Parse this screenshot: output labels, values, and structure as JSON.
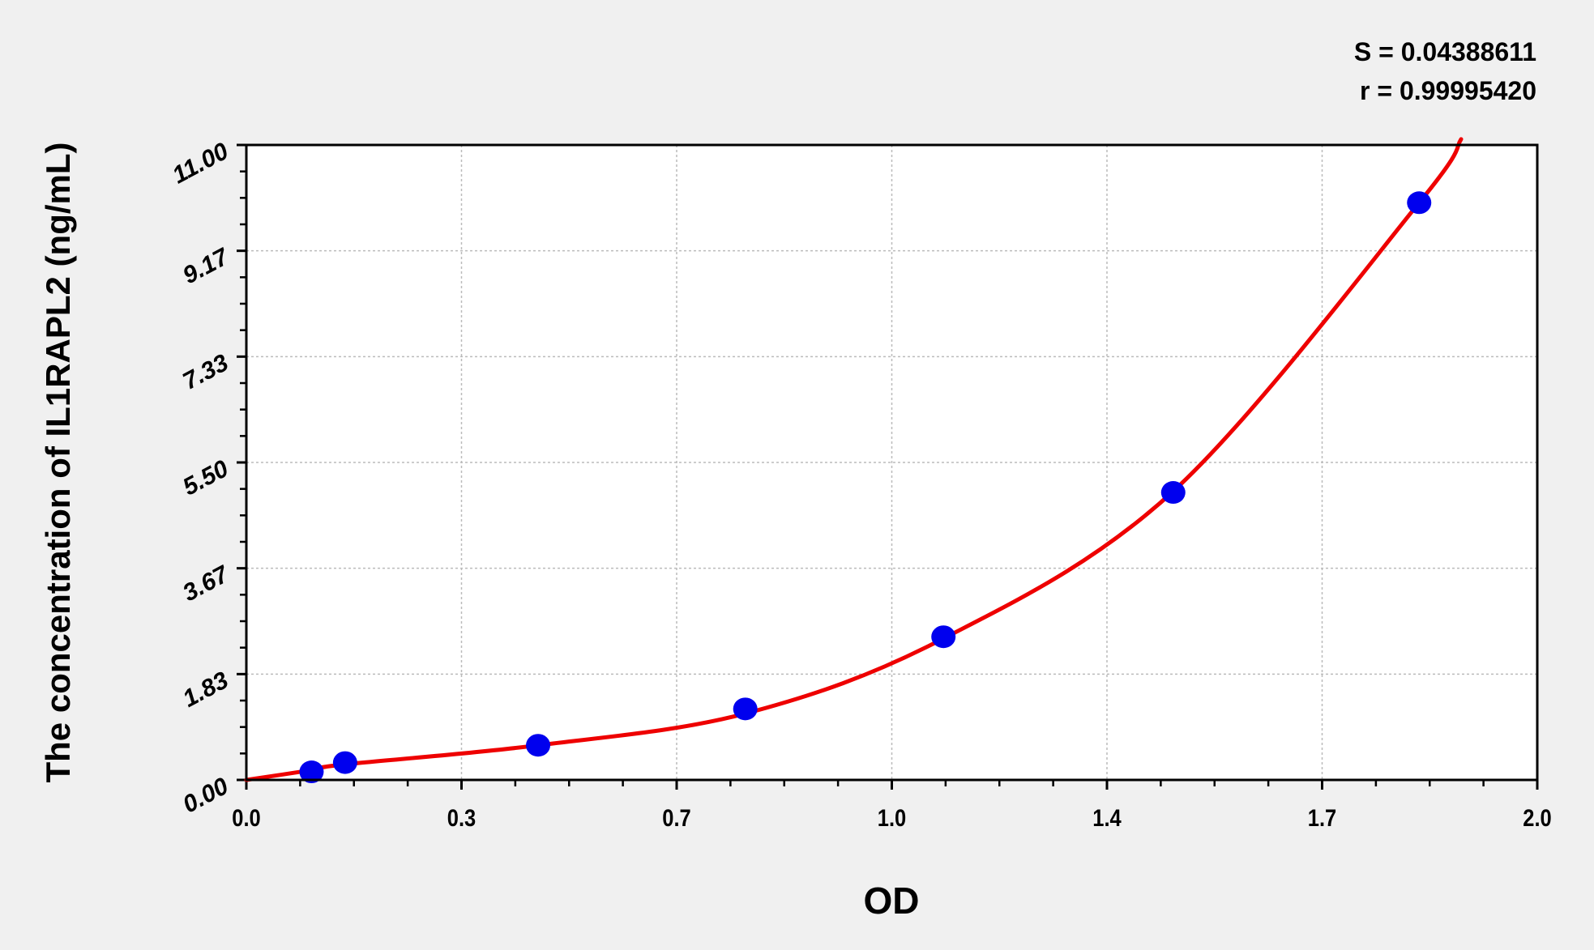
{
  "chart_data": {
    "type": "scatter",
    "title": "",
    "xlabel": "OD",
    "ylabel": "The concentration of IL1RAPL2 (ng/mL)",
    "xlim": [
      0,
      2.0
    ],
    "ylim": [
      0,
      11.0
    ],
    "x_tick_labels": [
      "0.0",
      "0.3",
      "0.7",
      "1.0",
      "1.4",
      "1.7",
      "2.0"
    ],
    "y_tick_labels": [
      "0.00",
      "1.83",
      "3.67",
      "5.50",
      "7.33",
      "9.17",
      "11.00"
    ],
    "grid": true,
    "annotations": [
      "S = 0.04388611",
      "r = 0.99995420"
    ],
    "series": [
      {
        "type": "scatter",
        "color": "#0000ee",
        "x": [
          0.101,
          0.153,
          0.452,
          0.773,
          1.08,
          1.436,
          1.817
        ],
        "y": [
          0.14,
          0.3,
          0.6,
          1.23,
          2.48,
          4.98,
          10.0
        ]
      },
      {
        "type": "line",
        "color": "#ee0000",
        "x": [
          0.0,
          0.101,
          0.153,
          0.452,
          0.773,
          1.08,
          1.436,
          1.817,
          1.882
        ],
        "y": [
          0.0,
          0.17,
          0.27,
          0.6,
          1.15,
          2.45,
          5.0,
          10.0,
          11.1
        ]
      }
    ]
  }
}
